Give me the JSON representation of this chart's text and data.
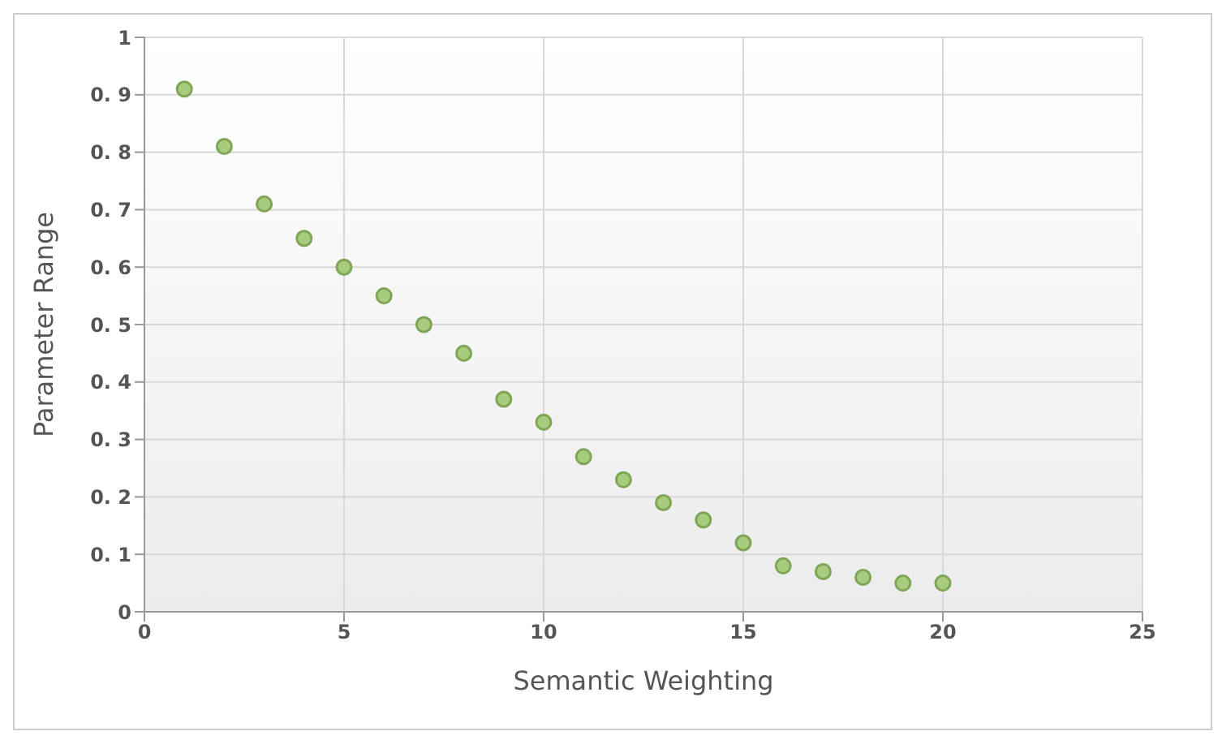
{
  "chart_data": {
    "type": "scatter",
    "xlabel": "Semantic Weighting",
    "ylabel": "Parameter Range",
    "x": [
      1,
      2,
      3,
      4,
      5,
      6,
      7,
      8,
      9,
      10,
      11,
      12,
      13,
      14,
      15,
      16,
      17,
      18,
      19,
      20
    ],
    "series": [
      {
        "color": "#a8cc7e",
        "values": [
          0.91,
          0.81,
          0.71,
          0.65,
          0.6,
          0.55,
          0.5,
          0.45,
          0.37,
          0.33,
          0.27,
          0.23,
          0.19,
          0.16,
          0.12,
          0.08,
          0.07,
          0.06,
          0.05,
          0.05
        ]
      }
    ],
    "xlim": [
      0,
      25
    ],
    "xticks": [
      0,
      5,
      10,
      15,
      20,
      25
    ],
    "ylim": [
      0,
      1
    ],
    "yticks": [
      0,
      {
        "value": 0.1,
        "label": "0. 1"
      },
      {
        "value": 0.2,
        "label": "0. 2"
      },
      {
        "value": 0.3,
        "label": "0. 3"
      },
      {
        "value": 0.4,
        "label": "0. 4"
      },
      {
        "value": 0.5,
        "label": "0. 5"
      },
      {
        "value": 0.6,
        "label": "0. 6"
      },
      {
        "value": 0.7,
        "label": "0. 7"
      },
      {
        "value": 0.8,
        "label": "0. 8"
      },
      {
        "value": 0.9,
        "label": "0. 9"
      },
      1
    ],
    "grid": true,
    "marker": "circle",
    "legend": false
  }
}
